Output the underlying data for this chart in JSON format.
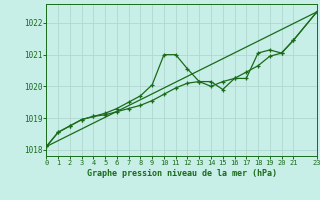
{
  "bg_color": "#c8eee8",
  "grid_color": "#b0d8d0",
  "line_color": "#1a6b1a",
  "text_color": "#1a6b1a",
  "xlabel": "Graphe pression niveau de la mer (hPa)",
  "xlim": [
    0,
    23
  ],
  "ylim": [
    1017.8,
    1022.6
  ],
  "yticks": [
    1018,
    1019,
    1020,
    1021,
    1022
  ],
  "xticks": [
    0,
    1,
    2,
    3,
    4,
    5,
    6,
    7,
    8,
    9,
    10,
    11,
    12,
    13,
    14,
    15,
    16,
    17,
    18,
    19,
    20,
    21,
    23
  ],
  "xtick_labels": [
    "0",
    "1",
    "2",
    "3",
    "4",
    "5",
    "6",
    "7",
    "8",
    "9",
    "10",
    "11",
    "12",
    "13",
    "14",
    "15",
    "16",
    "17",
    "18",
    "19",
    "20",
    "21",
    "23"
  ],
  "series1_x": [
    0,
    1,
    2,
    3,
    4,
    5,
    6,
    7,
    8,
    9,
    10,
    11,
    12,
    13,
    14,
    15,
    16,
    17,
    18,
    19,
    20,
    21,
    23
  ],
  "series1_y": [
    1018.1,
    1018.55,
    1018.75,
    1018.95,
    1019.05,
    1019.15,
    1019.3,
    1019.5,
    1019.7,
    1020.05,
    1021.0,
    1021.0,
    1020.55,
    1020.15,
    1020.15,
    1019.9,
    1020.25,
    1020.25,
    1021.05,
    1021.15,
    1021.05,
    1021.45,
    1022.35
  ],
  "series2_x": [
    0,
    1,
    2,
    3,
    4,
    5,
    6,
    7,
    8,
    9,
    10,
    11,
    12,
    13,
    14,
    15,
    16,
    17,
    18,
    19,
    20,
    21,
    23
  ],
  "series2_y": [
    1018.1,
    1018.55,
    1018.75,
    1018.95,
    1019.05,
    1019.1,
    1019.2,
    1019.3,
    1019.4,
    1019.55,
    1019.75,
    1019.95,
    1020.1,
    1020.15,
    1020.0,
    1020.15,
    1020.25,
    1020.45,
    1020.65,
    1020.95,
    1021.05,
    1021.45,
    1022.35
  ],
  "series3_x": [
    0,
    23
  ],
  "series3_y": [
    1018.1,
    1022.35
  ]
}
